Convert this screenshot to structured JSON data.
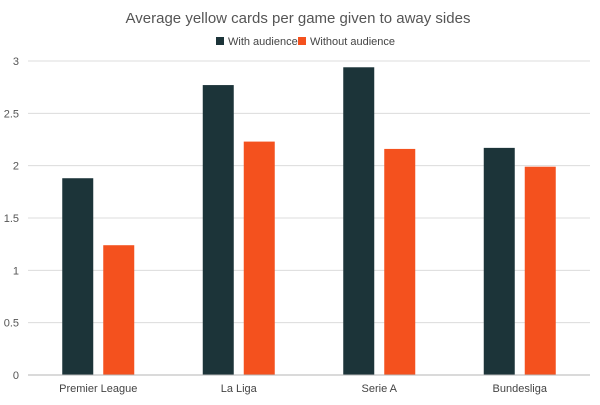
{
  "chart_data": {
    "type": "bar",
    "title": "Average yellow cards per game given to away sides",
    "categories": [
      "Premier League",
      "La Liga",
      "Serie A",
      "Bundesliga"
    ],
    "series": [
      {
        "name": "With audience",
        "color": "#1c3439",
        "values": [
          1.88,
          2.77,
          2.94,
          2.17
        ]
      },
      {
        "name": "Without audience",
        "color": "#f4511e",
        "values": [
          1.24,
          2.23,
          2.16,
          1.99
        ]
      }
    ],
    "xlabel": "",
    "ylabel": "",
    "ylim": [
      0,
      3
    ],
    "yticks": [
      "0",
      "0.5",
      "1",
      "1.5",
      "2",
      "2.5",
      "3"
    ],
    "grid": true,
    "legend_position": "top"
  }
}
